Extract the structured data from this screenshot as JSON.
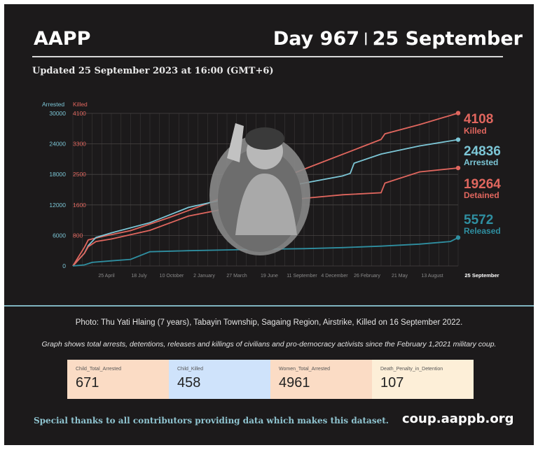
{
  "header": {
    "brand": "AAPP",
    "day": "Day 967",
    "separator": "|",
    "date": "25 September"
  },
  "updated": "Updated 25 September 2023 at 16:00 (GMT+6)",
  "chart_data": {
    "type": "line",
    "x_ticks": [
      "25 April",
      "18 July",
      "10 October",
      "2 January",
      "27 March",
      "19 June",
      "11 September",
      "4 December",
      "26 February",
      "21 May",
      "13 August",
      "25 September"
    ],
    "y_left": {
      "label": "Arrested",
      "ticks": [
        0,
        6000,
        12000,
        18000,
        24000,
        30000
      ],
      "range": [
        0,
        30000
      ],
      "color": "#7cc6d6"
    },
    "y_right": {
      "label": "Killed",
      "ticks": [
        0,
        800,
        1600,
        2500,
        3300,
        4100
      ],
      "range": [
        0,
        4100
      ],
      "color": "#e0665e"
    },
    "grid": true,
    "series": [
      {
        "name": "Killed",
        "axis": "right",
        "color": "#e0665e",
        "end_value": "4108",
        "x": [
          0,
          0.03,
          0.04,
          0.08,
          0.15,
          0.25,
          0.35,
          0.45,
          0.55,
          0.65,
          0.75,
          0.8,
          0.81,
          0.9,
          1.0
        ],
        "y": [
          0,
          500,
          700,
          800,
          950,
          1300,
          1680,
          2100,
          2400,
          2800,
          3200,
          3400,
          3550,
          3800,
          4108
        ]
      },
      {
        "name": "Arrested",
        "axis": "left",
        "color": "#7cc6d6",
        "end_value": "24836",
        "x": [
          0,
          0.03,
          0.04,
          0.06,
          0.1,
          0.2,
          0.3,
          0.4,
          0.5,
          0.6,
          0.7,
          0.72,
          0.73,
          0.8,
          0.9,
          1.0
        ],
        "y": [
          0,
          2500,
          4000,
          5600,
          6500,
          8500,
          11500,
          13200,
          14800,
          16300,
          17700,
          18200,
          20200,
          22000,
          23600,
          24836
        ]
      },
      {
        "name": "Detained",
        "axis": "left",
        "color": "#e0665e",
        "end_value": "19264",
        "x": [
          0,
          0.03,
          0.04,
          0.06,
          0.1,
          0.2,
          0.3,
          0.4,
          0.5,
          0.6,
          0.7,
          0.8,
          0.81,
          0.9,
          1.0
        ],
        "y": [
          0,
          2500,
          3800,
          4800,
          5300,
          7000,
          9800,
          11300,
          12300,
          13300,
          14000,
          14400,
          16300,
          18500,
          19264
        ]
      },
      {
        "name": "Released",
        "axis": "left",
        "color": "#2f8fa1",
        "end_value": "5572",
        "x": [
          0,
          0.03,
          0.05,
          0.1,
          0.15,
          0.2,
          0.3,
          0.4,
          0.5,
          0.6,
          0.7,
          0.8,
          0.9,
          0.98,
          1.0
        ],
        "y": [
          0,
          200,
          700,
          1000,
          1300,
          2800,
          3000,
          3150,
          3300,
          3400,
          3600,
          3900,
          4300,
          4800,
          5572
        ]
      }
    ]
  },
  "photo_credit": "Photo: Thu Yati Hlaing (7 years), Tabayin Township, Sagaing Region, Airstrike, Killed on 16 September 2022.",
  "graph_note": "Graph shows total arrests, detentions, releases and killings of civilians and pro-democracy activists since the February 1,2021 military coup.",
  "stats": [
    {
      "label": "Child_Total_Arrested",
      "value": "671",
      "color": "#fbdcc5"
    },
    {
      "label": "Child_Killed",
      "value": "458",
      "color": "#cfe3fb"
    },
    {
      "label": "Women_Total_Arrested",
      "value": "4961",
      "color": "#fbdcc5"
    },
    {
      "label": "Death_Penalty_in_Detention",
      "value": "107",
      "color": "#fdefd8"
    }
  ],
  "footer": {
    "thanks": "Special thanks to all contributors providing data which makes this dataset.",
    "site": "coup.aappb.org"
  }
}
